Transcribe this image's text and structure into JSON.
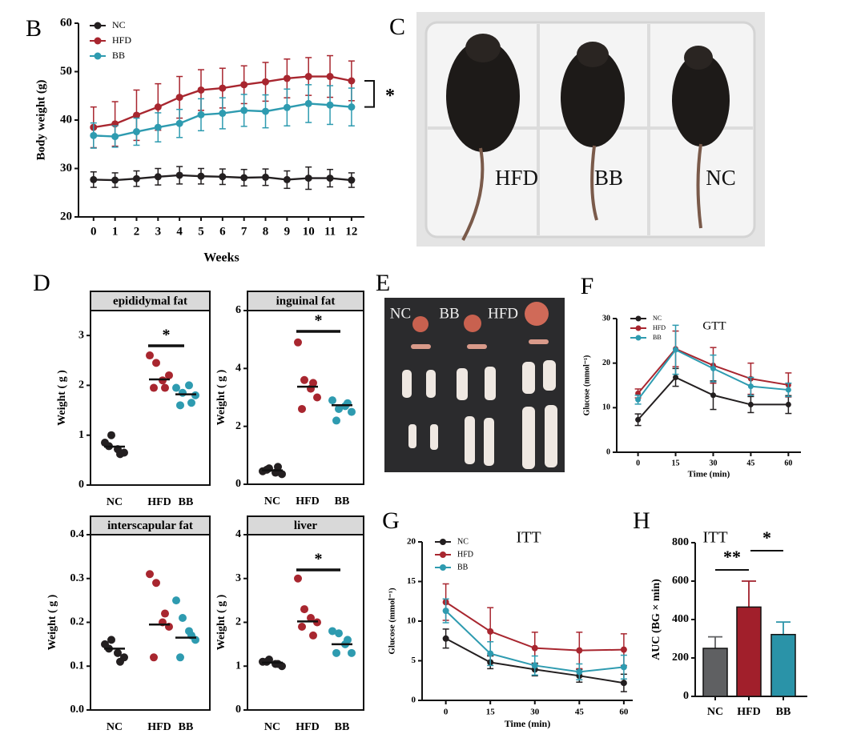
{
  "chart_data": [
    {
      "panel": "B",
      "type": "line",
      "ylabel": "Body weight  (g)",
      "xlabel": "Weeks",
      "legend": "upper left",
      "annotation": "*",
      "x": [
        0,
        1,
        2,
        3,
        4,
        5,
        6,
        7,
        8,
        9,
        10,
        11,
        12
      ],
      "xlim": [
        -0.7,
        12.6
      ],
      "xticks": [
        0,
        1,
        2,
        3,
        4,
        5,
        6,
        7,
        8,
        9,
        10,
        11,
        12
      ],
      "ylim": [
        20,
        60
      ],
      "yticks": [
        20,
        30,
        40,
        50,
        60
      ],
      "series": [
        {
          "name": "NC",
          "color": "#231f20",
          "values": [
            27.7,
            27.6,
            27.9,
            28.3,
            28.6,
            28.4,
            28.3,
            28.1,
            28.2,
            27.7,
            28.0,
            28.0,
            27.6
          ],
          "errors": [
            1.6,
            1.5,
            1.6,
            1.7,
            1.8,
            1.6,
            1.6,
            1.7,
            1.7,
            1.8,
            2.3,
            1.8,
            1.5
          ]
        },
        {
          "name": "HFD",
          "color": "#a8262f",
          "values": [
            38.5,
            39.2,
            41.0,
            42.7,
            44.7,
            46.2,
            46.6,
            47.3,
            47.9,
            48.6,
            49.0,
            49.0,
            48.1
          ],
          "errors": [
            4.2,
            4.6,
            5.2,
            4.8,
            4.3,
            4.2,
            4.1,
            3.9,
            4.0,
            4.0,
            3.9,
            4.3,
            4.1
          ]
        },
        {
          "name": "BB",
          "color": "#2e9bb0",
          "values": [
            36.8,
            36.6,
            37.6,
            38.5,
            39.3,
            41.1,
            41.4,
            42.0,
            41.8,
            42.6,
            43.4,
            43.1,
            42.7
          ],
          "errors": [
            2.6,
            2.2,
            2.8,
            3.0,
            2.9,
            3.3,
            3.2,
            3.3,
            3.4,
            3.8,
            3.9,
            4.0,
            3.9
          ]
        }
      ]
    },
    {
      "panel": "D",
      "type": "dotplot",
      "title": "epididymal fat",
      "ylabel": "Weight ( g )",
      "significance": "*",
      "categories": [
        "NC",
        "HFD",
        "BB"
      ],
      "colors": [
        "#231f20",
        "#a8262f",
        "#2e9bb0"
      ],
      "values": [
        [
          0.85,
          1.0,
          0.72,
          0.65,
          0.78,
          0.62
        ],
        [
          2.6,
          2.45,
          2.1,
          2.2,
          1.95,
          1.95
        ],
        [
          1.95,
          1.85,
          2.0,
          1.8,
          1.6,
          1.65
        ]
      ],
      "means": [
        0.77,
        2.12,
        1.82
      ],
      "ylim": [
        0,
        3.5
      ],
      "yticks": [
        0,
        1,
        2,
        3
      ]
    },
    {
      "type": "dotplot",
      "title": "inguinal fat",
      "ylabel": "Weight ( g )",
      "significance": "*",
      "categories": [
        "NC",
        "HFD",
        "BB"
      ],
      "colors": [
        "#231f20",
        "#a8262f",
        "#2e9bb0"
      ],
      "values": [
        [
          0.45,
          0.55,
          0.4,
          0.35,
          0.5,
          0.6
        ],
        [
          4.9,
          3.6,
          3.3,
          3.0,
          2.6,
          3.5
        ],
        [
          2.9,
          2.6,
          2.7,
          2.5,
          2.2,
          2.8
        ]
      ],
      "means": [
        0.48,
        3.37,
        2.73
      ],
      "ylim": [
        0,
        6
      ],
      "yticks": [
        0,
        2,
        4,
        6
      ]
    },
    {
      "type": "dotplot",
      "title": "interscapular fat",
      "ylabel": "Weight ( g )",
      "categories": [
        "NC",
        "HFD",
        "BB"
      ],
      "colors": [
        "#231f20",
        "#a8262f",
        "#2e9bb0"
      ],
      "values": [
        [
          0.15,
          0.16,
          0.13,
          0.12,
          0.14,
          0.11
        ],
        [
          0.31,
          0.29,
          0.2,
          0.19,
          0.12,
          0.22
        ],
        [
          0.25,
          0.21,
          0.18,
          0.16,
          0.12,
          0.17
        ]
      ],
      "means": [
        0.14,
        0.195,
        0.165
      ],
      "ylim": [
        0,
        0.4
      ],
      "yticks": [
        {
          "value": 0,
          "label": "0.0"
        },
        0.1,
        0.2,
        0.3,
        0.4
      ]
    },
    {
      "type": "dotplot",
      "title": "liver",
      "ylabel": "Weight ( g )",
      "significance": "*",
      "categories": [
        "NC",
        "HFD",
        "BB"
      ],
      "colors": [
        "#231f20",
        "#a8262f",
        "#2e9bb0"
      ],
      "values": [
        [
          1.1,
          1.15,
          1.05,
          1.0,
          1.1,
          1.05
        ],
        [
          3.0,
          2.3,
          2.1,
          2.0,
          1.9,
          1.7
        ],
        [
          1.8,
          1.75,
          1.5,
          1.3,
          1.3,
          1.6
        ]
      ],
      "means": [
        1.08,
        2.02,
        1.5
      ],
      "ylim": [
        0,
        4
      ],
      "yticks": [
        0,
        1,
        2,
        3,
        4
      ]
    },
    {
      "panel": "F",
      "type": "line",
      "title": "GTT",
      "ylabel": "Glucose (mmol⁻¹)",
      "xlabel": "Time (min)",
      "legend": "upper left",
      "x": [
        0,
        15,
        30,
        45,
        60
      ],
      "xlim": [
        -8.5,
        65
      ],
      "xticks": [
        0,
        15,
        30,
        45,
        60
      ],
      "ylim": [
        0,
        30
      ],
      "yticks": [
        0,
        10,
        20,
        30
      ],
      "series": [
        {
          "name": "NC",
          "color": "#231f20",
          "values": [
            7.3,
            16.8,
            12.8,
            10.7,
            10.7
          ],
          "errors": [
            1.3,
            2.0,
            3.2,
            1.8,
            2.0
          ]
        },
        {
          "name": "HFD",
          "color": "#a8262f",
          "values": [
            13.2,
            23.2,
            19.5,
            16.5,
            15.1
          ],
          "errors": [
            1.0,
            4.0,
            4.0,
            3.5,
            2.7
          ]
        },
        {
          "name": "BB",
          "color": "#2e9bb0",
          "values": [
            11.8,
            23.0,
            18.8,
            14.8,
            14.0
          ],
          "errors": [
            1.0,
            5.5,
            3.0,
            2.0,
            1.5
          ]
        }
      ]
    },
    {
      "panel": "G",
      "type": "line",
      "title": "ITT",
      "ylabel": "Glucose (mmol⁻¹)",
      "xlabel": "Time (min)",
      "legend": "upper left",
      "x": [
        0,
        15,
        30,
        45,
        60
      ],
      "xlim": [
        -8,
        63
      ],
      "xticks": [
        0,
        15,
        30,
        45,
        60
      ],
      "ylim": [
        0,
        20
      ],
      "yticks": [
        0,
        5,
        10,
        15,
        20
      ],
      "series": [
        {
          "name": "NC",
          "color": "#231f20",
          "values": [
            7.8,
            4.8,
            3.9,
            3.1,
            2.2
          ],
          "errors": [
            1.2,
            0.8,
            0.8,
            0.8,
            1.1
          ]
        },
        {
          "name": "HFD",
          "color": "#a8262f",
          "values": [
            12.4,
            8.7,
            6.6,
            6.3,
            6.4
          ],
          "errors": [
            2.3,
            3.0,
            2.0,
            2.3,
            2.0
          ]
        },
        {
          "name": "BB",
          "color": "#2e9bb0",
          "values": [
            11.3,
            5.9,
            4.4,
            3.6,
            4.2
          ],
          "errors": [
            1.5,
            1.5,
            1.2,
            1.0,
            1.5
          ]
        }
      ]
    },
    {
      "panel": "H",
      "type": "bar",
      "title": "ITT",
      "ylabel": "AUC (BG × min)",
      "significance": [
        "**",
        "*"
      ],
      "categories": [
        "NC",
        "HFD",
        "BB"
      ],
      "colors": [
        "#5f6062",
        "#a11f2b",
        "#2a93a8"
      ],
      "values": [
        250,
        465,
        322
      ],
      "errors": [
        60,
        135,
        65
      ],
      "ylim": [
        0,
        800
      ],
      "yticks": [
        0,
        200,
        400,
        600,
        800
      ]
    }
  ],
  "panel_c": {
    "letter": "C",
    "labels": [
      "HFD",
      "BB",
      "NC"
    ]
  },
  "panel_e": {
    "letter": "E",
    "labels": [
      "NC",
      "BB",
      "HFD"
    ]
  }
}
